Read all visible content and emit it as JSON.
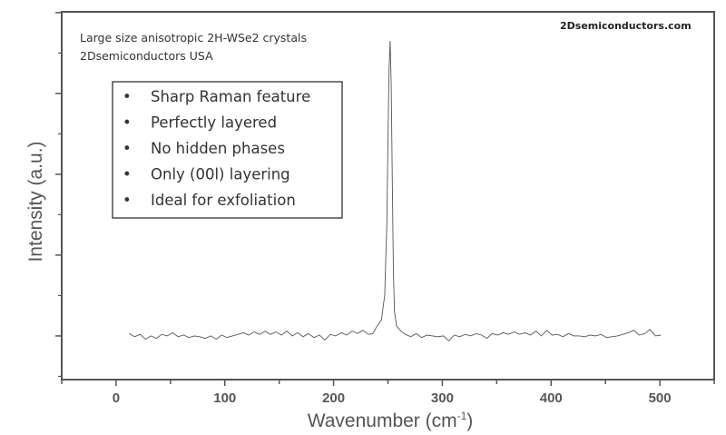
{
  "chart_data": {
    "type": "line",
    "title": "",
    "xlabel": "Wavenumber (cm",
    "xlabel_sup": "-1",
    "xlabel_end": ")",
    "ylabel": "Intensity (a.u.)",
    "xlim": [
      -50,
      550
    ],
    "ylim": [
      0.46,
      5.01
    ],
    "x_ticks": [
      0,
      100,
      200,
      300,
      400,
      500
    ],
    "x_tick_labels": [
      "0",
      "100",
      "200",
      "300",
      "400",
      "500"
    ],
    "y_ticks_unlabeled": [
      1,
      2,
      3,
      4,
      5
    ],
    "grid": false,
    "line_color": "#555555",
    "series": [
      {
        "x": [
          12,
          17,
          22,
          27,
          32,
          37,
          42,
          47,
          52,
          57,
          62,
          67,
          72,
          77,
          82,
          87,
          92,
          97,
          102,
          107,
          112,
          117,
          122,
          127,
          132,
          137,
          142,
          147,
          152,
          157,
          162,
          167,
          172,
          177,
          182,
          187,
          192,
          197,
          202,
          207,
          212,
          217,
          222,
          227,
          232,
          236,
          240,
          244,
          247,
          249,
          250,
          251,
          252,
          253,
          254,
          255,
          256,
          258,
          262,
          266,
          271,
          276,
          281,
          286,
          291,
          296,
          301,
          306,
          311,
          316,
          321,
          326,
          331,
          336,
          341,
          346,
          351,
          356,
          361,
          366,
          371,
          376,
          381,
          386,
          391,
          396,
          401,
          406,
          411,
          416,
          421,
          426,
          431,
          436,
          441,
          446,
          451,
          456,
          461,
          466,
          471,
          476,
          481,
          486,
          491,
          496,
          501
        ],
        "y": [
          1.03,
          0.99,
          1.02,
          0.96,
          1.0,
          0.97,
          1.02,
          1.0,
          1.04,
          0.99,
          1.01,
          0.98,
          1.0,
          0.99,
          0.97,
          1.0,
          0.96,
          1.01,
          0.98,
          1.0,
          1.02,
          1.04,
          1.01,
          1.05,
          1.02,
          1.06,
          1.02,
          1.05,
          1.01,
          1.06,
          1.0,
          1.04,
          0.99,
          1.03,
          0.98,
          1.01,
          0.95,
          1.02,
          1.0,
          1.04,
          1.01,
          1.06,
          1.03,
          1.07,
          1.02,
          1.03,
          1.12,
          1.2,
          1.5,
          2.4,
          3.4,
          4.3,
          4.65,
          4.1,
          2.9,
          1.8,
          1.3,
          1.12,
          1.06,
          1.02,
          0.99,
          1.03,
          0.98,
          1.01,
          1.0,
          0.99,
          1.0,
          0.94,
          1.01,
          0.99,
          1.02,
          1.0,
          1.03,
          1.01,
          0.97,
          1.03,
          1.01,
          1.04,
          1.02,
          1.05,
          1.02,
          1.04,
          1.01,
          1.06,
          1.0,
          1.07,
          1.01,
          1.02,
          0.99,
          1.03,
          1.0,
          1.0,
          0.99,
          1.01,
          1.0,
          1.02,
          0.98,
          0.99,
          1.0,
          1.02,
          1.04,
          1.07,
          1.01,
          1.03,
          1.08,
          1.0,
          1.01
        ]
      }
    ],
    "annotations": {
      "line1": "Large size anisotropic 2H-WSe2 crystals",
      "line2": "2Dsemiconductors USA",
      "website": "2Dsemiconductors.com"
    },
    "feature_list": [
      "Sharp Raman feature",
      "Perfectly  layered",
      "No hidden phases",
      "Only (00l) layering",
      "Ideal for exfoliation"
    ],
    "bullet_symbol": "•"
  }
}
